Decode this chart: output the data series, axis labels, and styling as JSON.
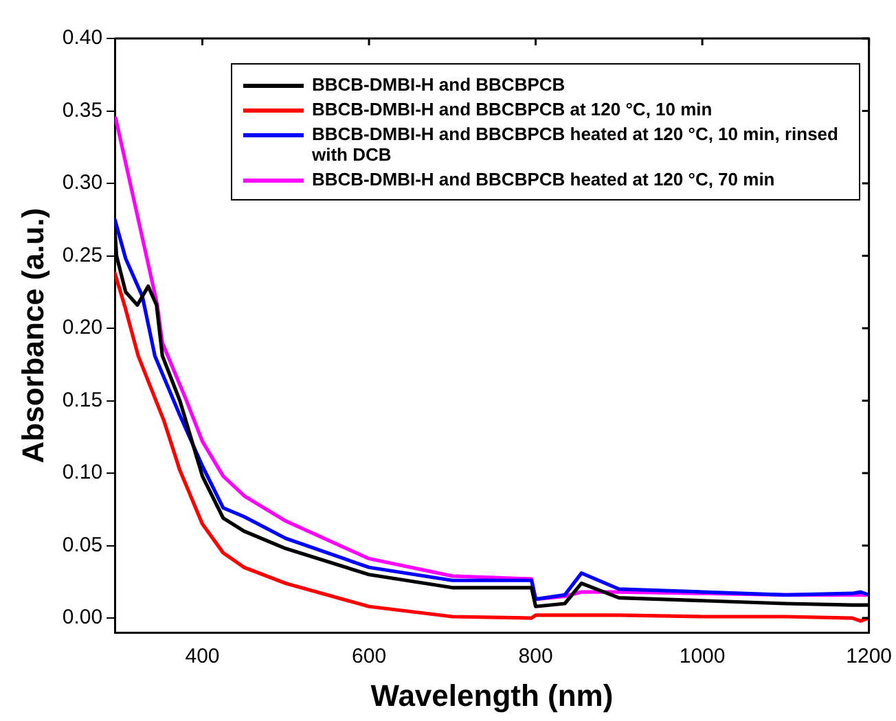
{
  "chart_data": {
    "type": "line",
    "xlabel": "Wavelength (nm)",
    "ylabel": "Absorbance (a.u.)",
    "xlim": [
      295,
      1200
    ],
    "xticks": [
      400,
      600,
      800,
      1000,
      1200
    ],
    "ylim": [
      -0.01,
      0.4
    ],
    "yticks": [
      {
        "value": 0,
        "label": "0.00"
      },
      {
        "value": 0.05,
        "label": "0.05"
      },
      {
        "value": 0.1,
        "label": "0.10"
      },
      {
        "value": 0.15,
        "label": "0.15"
      },
      {
        "value": 0.2,
        "label": "0.20"
      },
      {
        "value": 0.25,
        "label": "0.25"
      },
      {
        "value": 0.3,
        "label": "0.30"
      },
      {
        "value": 0.35,
        "label": "0.35"
      },
      {
        "value": 0.4,
        "label": "0.40"
      }
    ],
    "legend": "top right",
    "marker": "none",
    "line_style": "solid",
    "series": [
      {
        "name": "BBCB-DMBI-H and BBCBPCB",
        "color": "#000000",
        "x": [
          295,
          297,
          308,
          322,
          335,
          345,
          352,
          373,
          400,
          425,
          450,
          500,
          600,
          700,
          795,
          800,
          835,
          855,
          900,
          1000,
          1100,
          1180,
          1200
        ],
        "values": [
          0.267,
          0.25,
          0.225,
          0.216,
          0.229,
          0.216,
          0.181,
          0.15,
          0.098,
          0.069,
          0.06,
          0.048,
          0.03,
          0.021,
          0.021,
          0.008,
          0.01,
          0.024,
          0.014,
          0.012,
          0.01,
          0.009,
          0.009
        ]
      },
      {
        "name": "BBCB-DMBI-H and BBCBPCB at 120 °C, 10 min",
        "color": "#ff0000",
        "x": [
          295,
          308,
          323,
          354,
          373,
          400,
          425,
          450,
          500,
          600,
          700,
          795,
          800,
          835,
          900,
          1000,
          1100,
          1180,
          1190,
          1200
        ],
        "values": [
          0.238,
          0.213,
          0.181,
          0.136,
          0.102,
          0.065,
          0.045,
          0.035,
          0.024,
          0.008,
          0.001,
          0.0,
          0.002,
          0.002,
          0.002,
          0.001,
          0.001,
          0.0,
          -0.002,
          0.0
        ]
      },
      {
        "name": "BBCB-DMBI-H and BBCBPCB heated at 120 °C, 10 min, rinsed with DCB",
        "color": "#0000ff",
        "x": [
          295,
          308,
          328,
          343,
          373,
          400,
          425,
          450,
          500,
          600,
          700,
          795,
          800,
          835,
          855,
          900,
          1000,
          1100,
          1180,
          1190,
          1200
        ],
        "values": [
          0.275,
          0.248,
          0.222,
          0.181,
          0.14,
          0.105,
          0.076,
          0.07,
          0.055,
          0.035,
          0.026,
          0.026,
          0.013,
          0.016,
          0.031,
          0.02,
          0.018,
          0.016,
          0.017,
          0.018,
          0.016
        ]
      },
      {
        "name": "BBCB-DMBI-H and BBCBPCB heated at 120 °C, 70 min",
        "color": "#ff00ff",
        "x": [
          296,
          346,
          352,
          381,
          400,
          425,
          451,
          500,
          600,
          700,
          795,
          800,
          835,
          855,
          900,
          1000,
          1100,
          1180,
          1200
        ],
        "values": [
          0.345,
          0.216,
          0.19,
          0.15,
          0.122,
          0.098,
          0.084,
          0.067,
          0.041,
          0.029,
          0.027,
          0.013,
          0.015,
          0.018,
          0.018,
          0.017,
          0.016,
          0.016,
          0.016
        ]
      }
    ]
  }
}
